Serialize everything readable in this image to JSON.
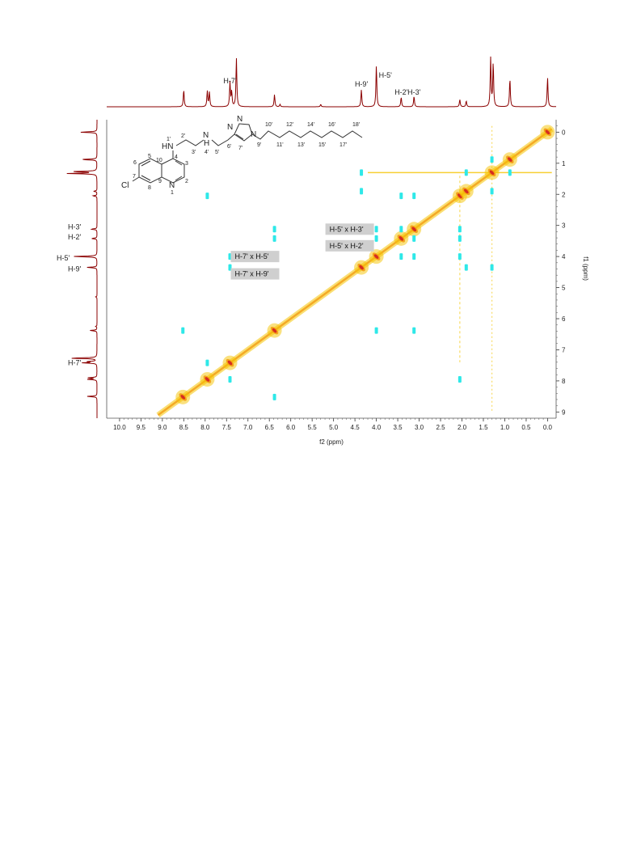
{
  "chart_data": {
    "type": "heatmap",
    "subtype": "2D NMR COSY contour plot",
    "xlabel": "f2 (ppm)",
    "ylabel": "f1 (ppm)",
    "xlim": [
      10.3,
      -0.2
    ],
    "ylim": [
      -0.4,
      9.2
    ],
    "x_ticks": [
      "10.0",
      "9.5",
      "9.0",
      "8.5",
      "8.0",
      "7.5",
      "7.0",
      "6.5",
      "6.0",
      "5.5",
      "5.0",
      "4.5",
      "4.0",
      "3.5",
      "3.0",
      "2.5",
      "2.0",
      "1.5",
      "1.0",
      "0.5",
      "0.0"
    ],
    "y_ticks": [
      "0",
      "1",
      "2",
      "3",
      "4",
      "5",
      "6",
      "7",
      "8",
      "9"
    ],
    "colors": {
      "spectrum": "#8b0000",
      "positive_outer": "#f5c400",
      "positive_mid": "#f39c12",
      "positive_inner": "#d62d20",
      "negative": "#2ee8e8",
      "axis": "#333333"
    },
    "proton_spectrum_peaks": [
      {
        "ppm": 8.5,
        "h": 0.35
      },
      {
        "ppm": 7.95,
        "h": 0.32
      },
      {
        "ppm": 7.9,
        "h": 0.3
      },
      {
        "ppm": 7.42,
        "h": 0.5
      },
      {
        "ppm": 7.38,
        "h": 0.3
      },
      {
        "ppm": 7.27,
        "h": 1.0
      },
      {
        "ppm": 6.38,
        "h": 0.25
      },
      {
        "ppm": 6.25,
        "h": 0.05
      },
      {
        "ppm": 5.3,
        "h": 0.05
      },
      {
        "ppm": 4.35,
        "h": 0.35
      },
      {
        "ppm": 4.0,
        "h": 0.85
      },
      {
        "ppm": 3.42,
        "h": 0.2
      },
      {
        "ppm": 3.12,
        "h": 0.22
      },
      {
        "ppm": 2.05,
        "h": 0.15
      },
      {
        "ppm": 1.9,
        "h": 0.12
      },
      {
        "ppm": 1.33,
        "h": 1.0
      },
      {
        "ppm": 1.27,
        "h": 0.9
      },
      {
        "ppm": 0.88,
        "h": 0.58
      },
      {
        "ppm": 0.0,
        "h": 0.6
      }
    ],
    "diagonal_peaks": [
      8.52,
      7.95,
      7.42,
      6.38,
      4.35,
      4.0,
      3.42,
      3.12,
      2.05,
      1.9,
      1.3,
      0.88,
      0.0
    ],
    "cross_peaks": [
      {
        "f2": 4.0,
        "f1": 3.12
      },
      {
        "f2": 4.0,
        "f1": 3.42
      },
      {
        "f2": 3.12,
        "f1": 4.0
      },
      {
        "f2": 3.42,
        "f1": 4.0
      },
      {
        "f2": 7.42,
        "f1": 4.0
      },
      {
        "f2": 7.42,
        "f1": 4.35
      },
      {
        "f2": 4.35,
        "f1": 1.9
      },
      {
        "f2": 1.9,
        "f1": 4.35
      },
      {
        "f2": 1.3,
        "f1": 0.88
      },
      {
        "f2": 0.88,
        "f1": 1.3
      },
      {
        "f2": 8.52,
        "f1": 6.38
      },
      {
        "f2": 6.38,
        "f1": 8.52
      },
      {
        "f2": 7.95,
        "f1": 7.42
      },
      {
        "f2": 7.42,
        "f1": 7.95
      },
      {
        "f2": 3.12,
        "f1": 3.42
      },
      {
        "f2": 3.42,
        "f1": 3.12
      },
      {
        "f2": 2.05,
        "f1": 3.12
      },
      {
        "f2": 2.05,
        "f1": 3.42
      },
      {
        "f2": 3.12,
        "f1": 2.05
      },
      {
        "f2": 3.42,
        "f1": 2.05
      },
      {
        "f2": 2.05,
        "f1": 4.0
      },
      {
        "f2": 2.05,
        "f1": 7.95
      },
      {
        "f2": 7.95,
        "f1": 2.05
      },
      {
        "f2": 4.35,
        "f1": 1.3
      },
      {
        "f2": 1.9,
        "f1": 1.3
      },
      {
        "f2": 1.3,
        "f1": 1.9
      },
      {
        "f2": 1.3,
        "f1": 4.35
      },
      {
        "f2": 4.0,
        "f1": 6.38
      },
      {
        "f2": 6.38,
        "f1": 4.0
      },
      {
        "f2": 6.38,
        "f1": 3.42
      },
      {
        "f2": 6.38,
        "f1": 3.12
      },
      {
        "f2": 3.12,
        "f1": 6.38
      }
    ],
    "top_peak_labels": [
      {
        "text": "H-7'",
        "ppm": 7.42
      },
      {
        "text": "H-9'",
        "ppm": 4.35
      },
      {
        "text": "H-5'",
        "ppm": 4.0
      },
      {
        "text": "H-2'",
        "ppm": 3.42
      },
      {
        "text": "H-3'",
        "ppm": 3.12
      }
    ],
    "left_peak_labels": [
      {
        "text": "H-3'",
        "ppm": 3.12
      },
      {
        "text": "H-2'",
        "ppm": 3.42
      },
      {
        "text": "H-5'",
        "ppm": 4.0
      },
      {
        "text": "H-9'",
        "ppm": 4.35
      },
      {
        "text": "H-7'",
        "ppm": 7.42
      }
    ],
    "annotations": [
      {
        "text": "H-5' x H-3'",
        "f2": 4.0,
        "f1": 3.12
      },
      {
        "text": "H-5' x H-2'",
        "f2": 4.0,
        "f1": 3.42
      },
      {
        "text": "H-7' x H-5'",
        "f2": 7.42,
        "f1": 4.0
      },
      {
        "text": "H-7' x H-9'",
        "f2": 7.42,
        "f1": 4.35
      }
    ],
    "structure_labels": {
      "atoms": [
        "HN",
        "N",
        "H",
        "N",
        "N",
        "N",
        "Cl",
        "N"
      ],
      "numbers": [
        "1'",
        "2'",
        "3'",
        "4'",
        "5'",
        "6'",
        "7'",
        "9'",
        "10'",
        "11'",
        "12'",
        "13'",
        "14'",
        "15'",
        "16'",
        "17'",
        "18'",
        "1",
        "2",
        "3",
        "4",
        "5",
        "6",
        "7",
        "8",
        "9",
        "10"
      ]
    }
  }
}
